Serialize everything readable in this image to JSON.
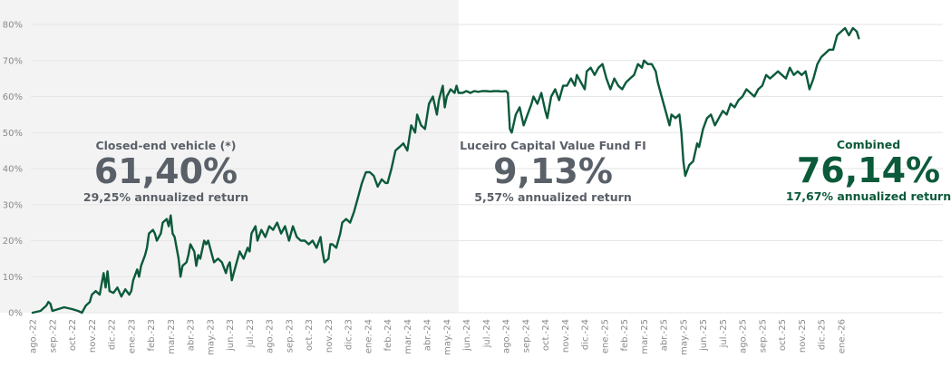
{
  "chart_data": {
    "type": "line",
    "title": "",
    "xlabel": "",
    "ylabel": "",
    "ylim": [
      0,
      80
    ],
    "y_ticks": [
      "0%",
      "10%",
      "20%",
      "30%",
      "40%",
      "50%",
      "60%",
      "70%",
      "80%"
    ],
    "y_tick_values": [
      0,
      10,
      20,
      30,
      40,
      50,
      60,
      70,
      80
    ],
    "x_tick_labels": [
      "ago.-22",
      "sep.-22",
      "oct.-22",
      "nov.-22",
      "dic.-22",
      "ene.-23",
      "feb.-23",
      "mar.-23",
      "abr.-23",
      "may.-23",
      "jun.-23",
      "jul.-23",
      "ago.-23",
      "sep.-23",
      "oct.-23",
      "nov.-23",
      "dic.-23",
      "ene.-24",
      "feb.-24",
      "mar.-24",
      "abr.-24",
      "may.-24",
      "jun.-24",
      "jul.-24",
      "ago.-24",
      "sep.-24",
      "oct.-24",
      "nov.-24",
      "dic.-24",
      "ene.-25",
      "feb.-25",
      "mar.-25",
      "abr.-25",
      "may.-25",
      "jun.-25",
      "jul.-25",
      "ago.-25",
      "sep.-25",
      "oct.-25",
      "nov.-25",
      "dic.-25",
      "ene.-26"
    ],
    "x_range_months": [
      0,
      42
    ],
    "shaded_region_months": [
      0,
      21.6
    ],
    "series": [
      {
        "name": "Combined",
        "color": "#0b5a3a",
        "points": [
          [
            0,
            0
          ],
          [
            0.4,
            0.5
          ],
          [
            0.7,
            2
          ],
          [
            0.8,
            3
          ],
          [
            0.9,
            2.5
          ],
          [
            1.0,
            0.5
          ],
          [
            1.3,
            1
          ],
          [
            1.6,
            1.5
          ],
          [
            2.0,
            1
          ],
          [
            2.3,
            0.5
          ],
          [
            2.5,
            0
          ],
          [
            2.7,
            2
          ],
          [
            2.9,
            3
          ],
          [
            3.0,
            5
          ],
          [
            3.2,
            6
          ],
          [
            3.4,
            5
          ],
          [
            3.5,
            8
          ],
          [
            3.6,
            11
          ],
          [
            3.7,
            7
          ],
          [
            3.8,
            11.5
          ],
          [
            3.9,
            6
          ],
          [
            4.1,
            5.5
          ],
          [
            4.3,
            7
          ],
          [
            4.5,
            4.5
          ],
          [
            4.7,
            6.5
          ],
          [
            4.9,
            5
          ],
          [
            5.0,
            6
          ],
          [
            5.1,
            9
          ],
          [
            5.3,
            12
          ],
          [
            5.4,
            10
          ],
          [
            5.5,
            13
          ],
          [
            5.7,
            16
          ],
          [
            5.8,
            18
          ],
          [
            5.9,
            22
          ],
          [
            6.1,
            23
          ],
          [
            6.2,
            22
          ],
          [
            6.3,
            20
          ],
          [
            6.5,
            22
          ],
          [
            6.6,
            25
          ],
          [
            6.8,
            26
          ],
          [
            6.9,
            24
          ],
          [
            7.0,
            27
          ],
          [
            7.1,
            22
          ],
          [
            7.2,
            21
          ],
          [
            7.4,
            15
          ],
          [
            7.5,
            10
          ],
          [
            7.6,
            13
          ],
          [
            7.8,
            14
          ],
          [
            7.9,
            16
          ],
          [
            8.0,
            19
          ],
          [
            8.2,
            17
          ],
          [
            8.3,
            13
          ],
          [
            8.4,
            16
          ],
          [
            8.5,
            15
          ],
          [
            8.7,
            20
          ],
          [
            8.8,
            19
          ],
          [
            8.9,
            20
          ],
          [
            9.1,
            16
          ],
          [
            9.2,
            14
          ],
          [
            9.4,
            15
          ],
          [
            9.6,
            14
          ],
          [
            9.8,
            11
          ],
          [
            9.9,
            13
          ],
          [
            10.0,
            14
          ],
          [
            10.1,
            9
          ],
          [
            10.3,
            13
          ],
          [
            10.5,
            17
          ],
          [
            10.7,
            15
          ],
          [
            10.9,
            18
          ],
          [
            11.0,
            17
          ],
          [
            11.1,
            22
          ],
          [
            11.3,
            24
          ],
          [
            11.4,
            20
          ],
          [
            11.6,
            23
          ],
          [
            11.8,
            21
          ],
          [
            12.0,
            24
          ],
          [
            12.2,
            23
          ],
          [
            12.4,
            25
          ],
          [
            12.6,
            22
          ],
          [
            12.8,
            24
          ],
          [
            13.0,
            20
          ],
          [
            13.2,
            24
          ],
          [
            13.4,
            21
          ],
          [
            13.6,
            20
          ],
          [
            13.8,
            20
          ],
          [
            14.0,
            19
          ],
          [
            14.2,
            20
          ],
          [
            14.4,
            18
          ],
          [
            14.6,
            21
          ],
          [
            14.7,
            17
          ],
          [
            14.8,
            14
          ],
          [
            15.0,
            15
          ],
          [
            15.1,
            19
          ],
          [
            15.2,
            19
          ],
          [
            15.4,
            18
          ],
          [
            15.6,
            22
          ],
          [
            15.7,
            25
          ],
          [
            15.9,
            26
          ],
          [
            16.1,
            25
          ],
          [
            16.3,
            28
          ],
          [
            16.5,
            32
          ],
          [
            16.7,
            36
          ],
          [
            16.9,
            39
          ],
          [
            17.1,
            39
          ],
          [
            17.3,
            38
          ],
          [
            17.5,
            35
          ],
          [
            17.7,
            37
          ],
          [
            17.9,
            36
          ],
          [
            18.0,
            36
          ],
          [
            18.2,
            40
          ],
          [
            18.4,
            45
          ],
          [
            18.6,
            46
          ],
          [
            18.8,
            47
          ],
          [
            19.0,
            45
          ],
          [
            19.2,
            52
          ],
          [
            19.4,
            50
          ],
          [
            19.5,
            55
          ],
          [
            19.7,
            52
          ],
          [
            19.9,
            51
          ],
          [
            20.1,
            58
          ],
          [
            20.3,
            60
          ],
          [
            20.5,
            55
          ],
          [
            20.6,
            59
          ],
          [
            20.8,
            63
          ],
          [
            20.9,
            57
          ],
          [
            21.0,
            60
          ],
          [
            21.2,
            62
          ],
          [
            21.4,
            61
          ],
          [
            21.5,
            63
          ],
          [
            21.6,
            61
          ],
          [
            21.8,
            61
          ],
          [
            22.0,
            61.5
          ],
          [
            22.2,
            61
          ],
          [
            22.4,
            61.5
          ],
          [
            22.6,
            61.3
          ],
          [
            22.8,
            61.5
          ],
          [
            23.0,
            61.5
          ],
          [
            23.2,
            61.4
          ],
          [
            23.4,
            61.5
          ],
          [
            23.6,
            61.5
          ],
          [
            23.8,
            61.4
          ],
          [
            24.0,
            61.5
          ],
          [
            24.1,
            61
          ],
          [
            24.2,
            51
          ],
          [
            24.3,
            50
          ],
          [
            24.5,
            55
          ],
          [
            24.7,
            57
          ],
          [
            24.9,
            52
          ],
          [
            25.1,
            55
          ],
          [
            25.3,
            58
          ],
          [
            25.4,
            60
          ],
          [
            25.6,
            58
          ],
          [
            25.8,
            61
          ],
          [
            26.0,
            56
          ],
          [
            26.1,
            54
          ],
          [
            26.3,
            60
          ],
          [
            26.5,
            62
          ],
          [
            26.7,
            59
          ],
          [
            26.9,
            63
          ],
          [
            27.1,
            63
          ],
          [
            27.3,
            65
          ],
          [
            27.5,
            63
          ],
          [
            27.6,
            66
          ],
          [
            27.8,
            64
          ],
          [
            28.0,
            62
          ],
          [
            28.1,
            67
          ],
          [
            28.3,
            68
          ],
          [
            28.5,
            66
          ],
          [
            28.7,
            68
          ],
          [
            28.9,
            69
          ],
          [
            29.1,
            65
          ],
          [
            29.3,
            62
          ],
          [
            29.5,
            65
          ],
          [
            29.7,
            63
          ],
          [
            29.9,
            62
          ],
          [
            30.1,
            64
          ],
          [
            30.3,
            65
          ],
          [
            30.5,
            66
          ],
          [
            30.7,
            69
          ],
          [
            30.9,
            68
          ],
          [
            31.0,
            70
          ],
          [
            31.2,
            69
          ],
          [
            31.4,
            69
          ],
          [
            31.6,
            67
          ],
          [
            31.7,
            64
          ],
          [
            31.9,
            60
          ],
          [
            32.1,
            56
          ],
          [
            32.3,
            52
          ],
          [
            32.4,
            55
          ],
          [
            32.6,
            54
          ],
          [
            32.8,
            55
          ],
          [
            32.9,
            50
          ],
          [
            33.0,
            42
          ],
          [
            33.1,
            38
          ],
          [
            33.3,
            41
          ],
          [
            33.5,
            42
          ],
          [
            33.7,
            47
          ],
          [
            33.8,
            46
          ],
          [
            34.0,
            51
          ],
          [
            34.2,
            54
          ],
          [
            34.4,
            55
          ],
          [
            34.6,
            52
          ],
          [
            34.8,
            54
          ],
          [
            35.0,
            56
          ],
          [
            35.2,
            55
          ],
          [
            35.4,
            58
          ],
          [
            35.6,
            57
          ],
          [
            35.8,
            59
          ],
          [
            36.0,
            60
          ],
          [
            36.2,
            62
          ],
          [
            36.4,
            61
          ],
          [
            36.6,
            60
          ],
          [
            36.8,
            62
          ],
          [
            37.0,
            63
          ],
          [
            37.2,
            66
          ],
          [
            37.4,
            65
          ],
          [
            37.6,
            66
          ],
          [
            37.8,
            67
          ],
          [
            38.0,
            66
          ],
          [
            38.2,
            65
          ],
          [
            38.4,
            68
          ],
          [
            38.6,
            66
          ],
          [
            38.8,
            67
          ],
          [
            39.0,
            66
          ],
          [
            39.2,
            67
          ],
          [
            39.4,
            62
          ],
          [
            39.6,
            65
          ],
          [
            39.8,
            69
          ],
          [
            40.0,
            71
          ],
          [
            40.2,
            72
          ],
          [
            40.4,
            73
          ],
          [
            40.6,
            73
          ],
          [
            40.8,
            77
          ],
          [
            41.0,
            78
          ],
          [
            41.2,
            79
          ],
          [
            41.4,
            77
          ],
          [
            41.6,
            79
          ],
          [
            41.8,
            78
          ],
          [
            41.9,
            76.14
          ]
        ]
      }
    ],
    "annotations": [
      {
        "title": "Closed-end vehicle (*)",
        "value": "61,40%",
        "subtitle": "29,25% annualized return",
        "color": "#5a6068"
      },
      {
        "title": "Luceiro Capital Value Fund FI",
        "value": "9,13%",
        "subtitle": "5,57% annualized return",
        "color": "#5a6068"
      },
      {
        "title": "Combined",
        "value": "76,14%",
        "subtitle": "17,67% annualized return",
        "color": "#0b5a3a"
      }
    ]
  }
}
